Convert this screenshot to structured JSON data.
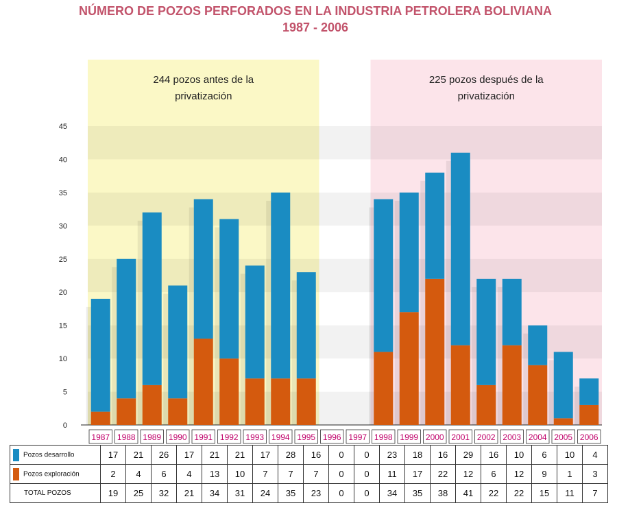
{
  "title": "NÚMERO DE POZOS PERFORADOS EN LA INDUSTRIA PETROLERA BOLIVIANA",
  "subtitle": "1987 - 2006",
  "colors": {
    "title": "#c2536b",
    "desarrollo": "#1a8cc2",
    "exploracion": "#d45a0e",
    "before_zone": "#fbf8c6",
    "after_zone": "#fce4ea",
    "year_labels": "#c0006a"
  },
  "chart_data": {
    "type": "bar",
    "stacked": true,
    "categories": [
      "1987",
      "1988",
      "1989",
      "1990",
      "1991",
      "1992",
      "1993",
      "1994",
      "1995",
      "1996",
      "1997",
      "1998",
      "1999",
      "2000",
      "2001",
      "2002",
      "2003",
      "2004",
      "2005",
      "2006"
    ],
    "series": [
      {
        "name": "Pozos exploración",
        "values": [
          2,
          4,
          6,
          4,
          13,
          10,
          7,
          7,
          7,
          0,
          0,
          11,
          17,
          22,
          12,
          6,
          12,
          9,
          1,
          3
        ]
      },
      {
        "name": "Pozos desarrollo",
        "values": [
          17,
          21,
          26,
          17,
          21,
          21,
          17,
          28,
          16,
          0,
          0,
          23,
          18,
          16,
          29,
          16,
          10,
          6,
          10,
          4
        ]
      }
    ],
    "totals": [
      19,
      25,
      32,
      21,
      34,
      31,
      24,
      35,
      23,
      0,
      0,
      34,
      35,
      38,
      41,
      22,
      22,
      15,
      11,
      7
    ],
    "total_label": "TOTAL POZOS",
    "ylim": [
      0,
      45
    ],
    "yticks": [
      0,
      5,
      10,
      15,
      20,
      25,
      30,
      35,
      40,
      45
    ],
    "annotations": [
      {
        "text_line1": "244 pozos antes de la",
        "text_line2": "privatización",
        "period": [
          "1987",
          "1995"
        ]
      },
      {
        "text_line1": "225 pozos después de la",
        "text_line2": "privatización",
        "period": [
          "1998",
          "2006"
        ]
      }
    ],
    "grid": true,
    "legend": "table-below"
  }
}
